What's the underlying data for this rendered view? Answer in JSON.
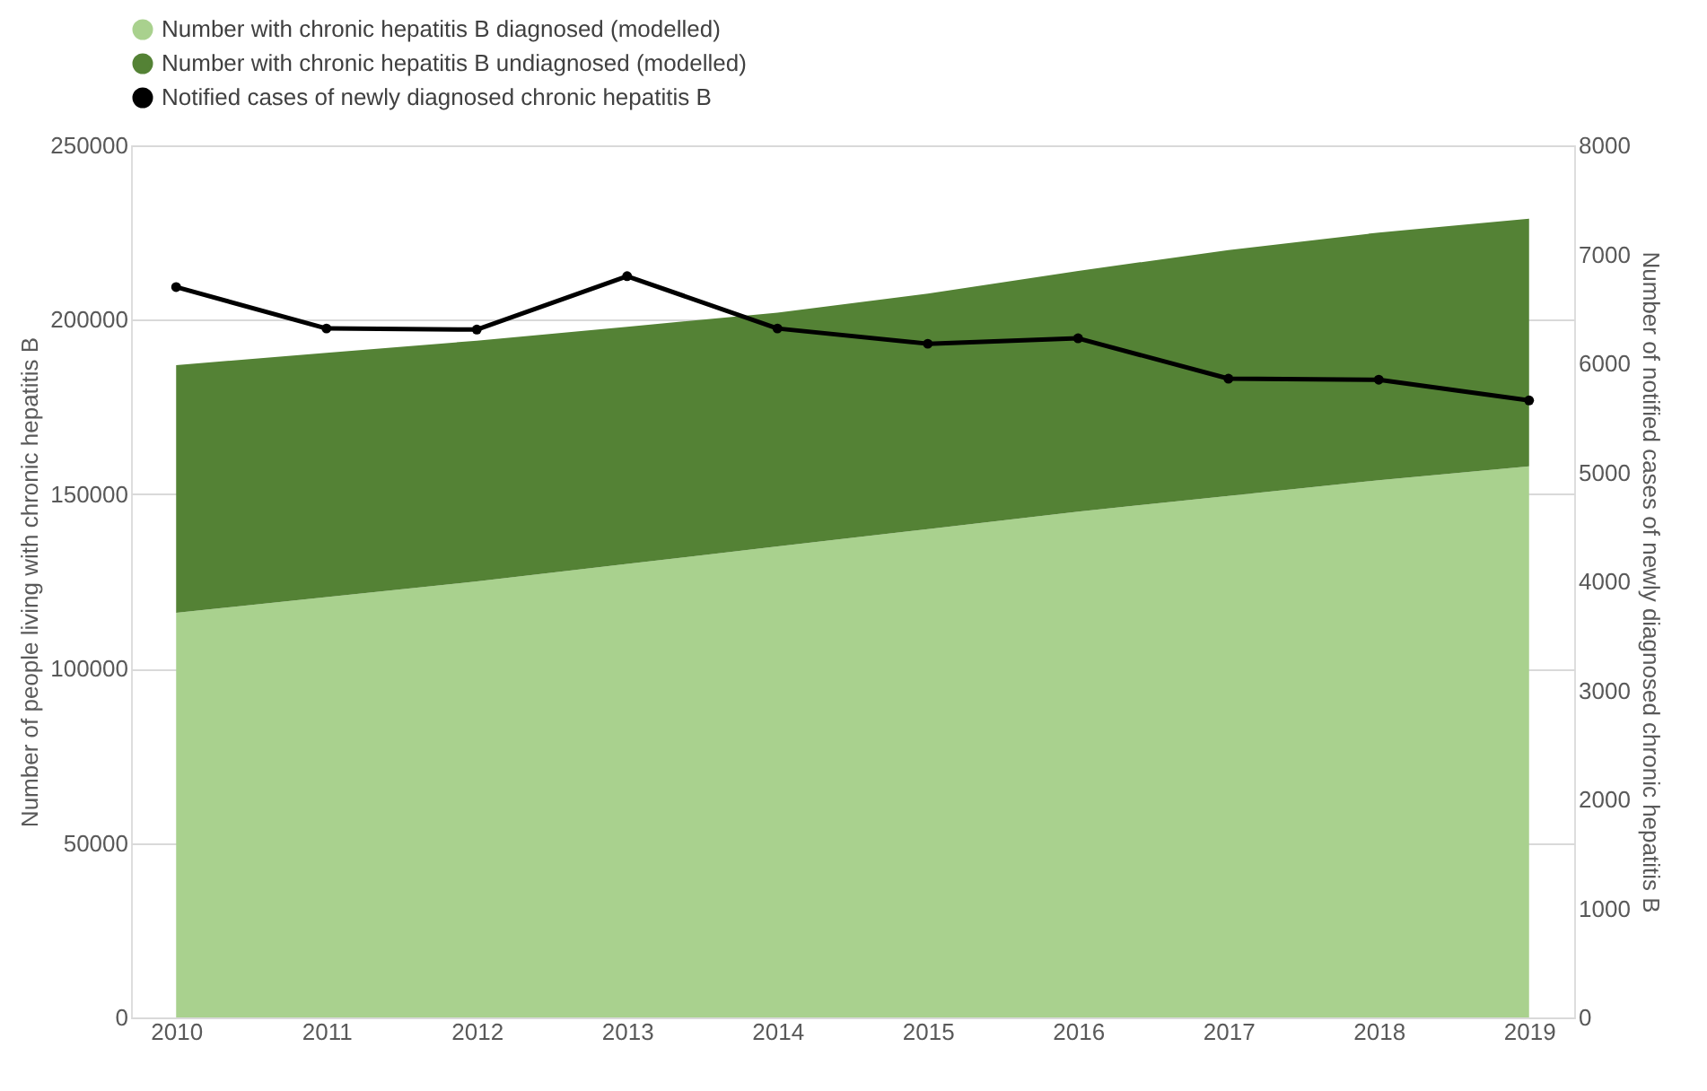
{
  "chart_data": {
    "type": "area",
    "stacked": true,
    "categories": [
      "2010",
      "2011",
      "2012",
      "2013",
      "2014",
      "2015",
      "2016",
      "2017",
      "2018",
      "2019"
    ],
    "series": [
      {
        "name": "Number with chronic hepatitis B diagnosed (modelled)",
        "color": "#a9d18e",
        "values": [
          116000,
          120500,
          125000,
          130000,
          135000,
          140000,
          145000,
          149500,
          154000,
          158000
        ]
      },
      {
        "name": "Number with chronic hepatitis B undiagnosed (modelled)",
        "color": "#548235",
        "values": [
          71000,
          70000,
          69000,
          68000,
          67000,
          67500,
          69000,
          70500,
          71000,
          71000
        ]
      },
      {
        "name": "Notified cases of newly diagnosed chronic hepatitis B",
        "color": "#000000",
        "type": "line",
        "axis": "y2",
        "marker": "circle",
        "values": [
          6700,
          6320,
          6310,
          6800,
          6320,
          6180,
          6230,
          5860,
          5850,
          5660
        ]
      }
    ],
    "ylabel": "Number of people living with chronic hepatitis B",
    "y2label": "Number of notified cases of newly diagnosed chronic hepatitis B",
    "ylim": [
      0,
      250000
    ],
    "yticks": [
      0,
      50000,
      100000,
      150000,
      200000,
      250000
    ],
    "y2lim": [
      0,
      8000
    ],
    "y2ticks": [
      0,
      1000,
      2000,
      3000,
      4000,
      5000,
      6000,
      7000,
      8000
    ],
    "grid": "y",
    "legend": "top"
  }
}
